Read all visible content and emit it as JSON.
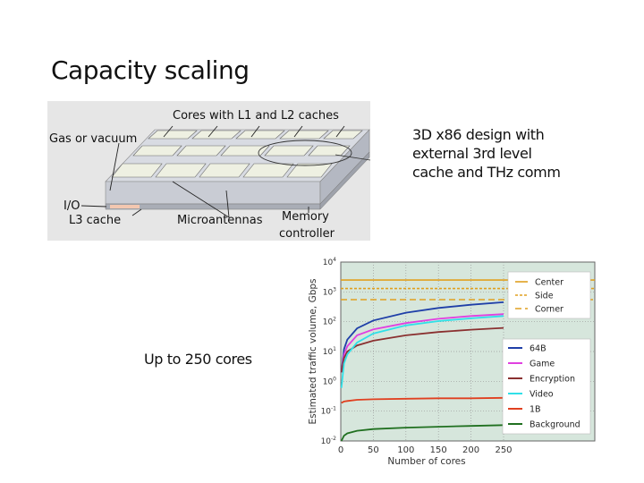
{
  "slide": {
    "title": "Capacity scaling",
    "caption_right": [
      "3D x86 design with",
      "external 3rd level",
      "cache and THz comm"
    ],
    "caption_left": "Up to 250 cores"
  },
  "diagram": {
    "labels": {
      "cores": "Cores with L1 and L2 caches",
      "gas": "Gas or vacuum",
      "io": "I/O",
      "l3": "L3 cache",
      "micro": "Microantennas",
      "mem1": "Memory",
      "mem2": "controller"
    },
    "colors": {
      "background": "#e6e6e6",
      "tile": "#eef0e2",
      "slab": "#c9ccd4",
      "slab_side": "#b4b8c2"
    }
  },
  "chart_data": {
    "type": "line",
    "title": "",
    "xlabel": "Number of cores",
    "ylabel": "Estimated traffic volume, Gbps",
    "xlim": [
      0,
      250
    ],
    "ylim_log10": [
      -2,
      4
    ],
    "yscale": "log",
    "x_ticks": [
      "0",
      "50",
      "100",
      "150",
      "200",
      "250"
    ],
    "y_ticks": [
      "10^-2",
      "10^-1",
      "10^0",
      "10^1",
      "10^2",
      "10^3",
      "10^4"
    ],
    "grid": true,
    "background": "#d6e6dc",
    "capacity_lines": [
      {
        "name": "Center",
        "value": 2500,
        "style": "solid",
        "color": "#e0a020"
      },
      {
        "name": "Side",
        "value": 1300,
        "style": "dotted",
        "color": "#e0a020"
      },
      {
        "name": "Corner",
        "value": 550,
        "style": "dashed",
        "color": "#e0a020"
      }
    ],
    "x": [
      1,
      5,
      10,
      25,
      50,
      100,
      150,
      200,
      250
    ],
    "series": [
      {
        "name": "64B",
        "color": "#1f3fa8",
        "values": [
          2,
          12,
          25,
          60,
          110,
          200,
          290,
          370,
          450
        ]
      },
      {
        "name": "Game",
        "color": "#e040e0",
        "values": [
          2,
          8,
          15,
          35,
          55,
          90,
          125,
          155,
          180
        ]
      },
      {
        "name": "Encryption",
        "color": "#8a3030",
        "values": [
          2,
          6,
          10,
          16,
          23,
          35,
          45,
          54,
          62
        ]
      },
      {
        "name": "Video",
        "color": "#30e0e8",
        "values": [
          0.6,
          4,
          8,
          20,
          40,
          75,
          105,
          130,
          155
        ]
      },
      {
        "name": "1B",
        "color": "#e04020",
        "values": [
          0.19,
          0.21,
          0.22,
          0.24,
          0.25,
          0.26,
          0.27,
          0.27,
          0.28
        ]
      },
      {
        "name": "Background",
        "color": "#207020",
        "values": [
          0.01,
          0.015,
          0.018,
          0.022,
          0.025,
          0.028,
          0.03,
          0.032,
          0.034
        ]
      }
    ],
    "legend_capacity": [
      "Center",
      "Side",
      "Corner"
    ],
    "legend_series": [
      "64B",
      "Game",
      "Encryption",
      "Video",
      "1B",
      "Background"
    ],
    "legend_position": "right"
  }
}
